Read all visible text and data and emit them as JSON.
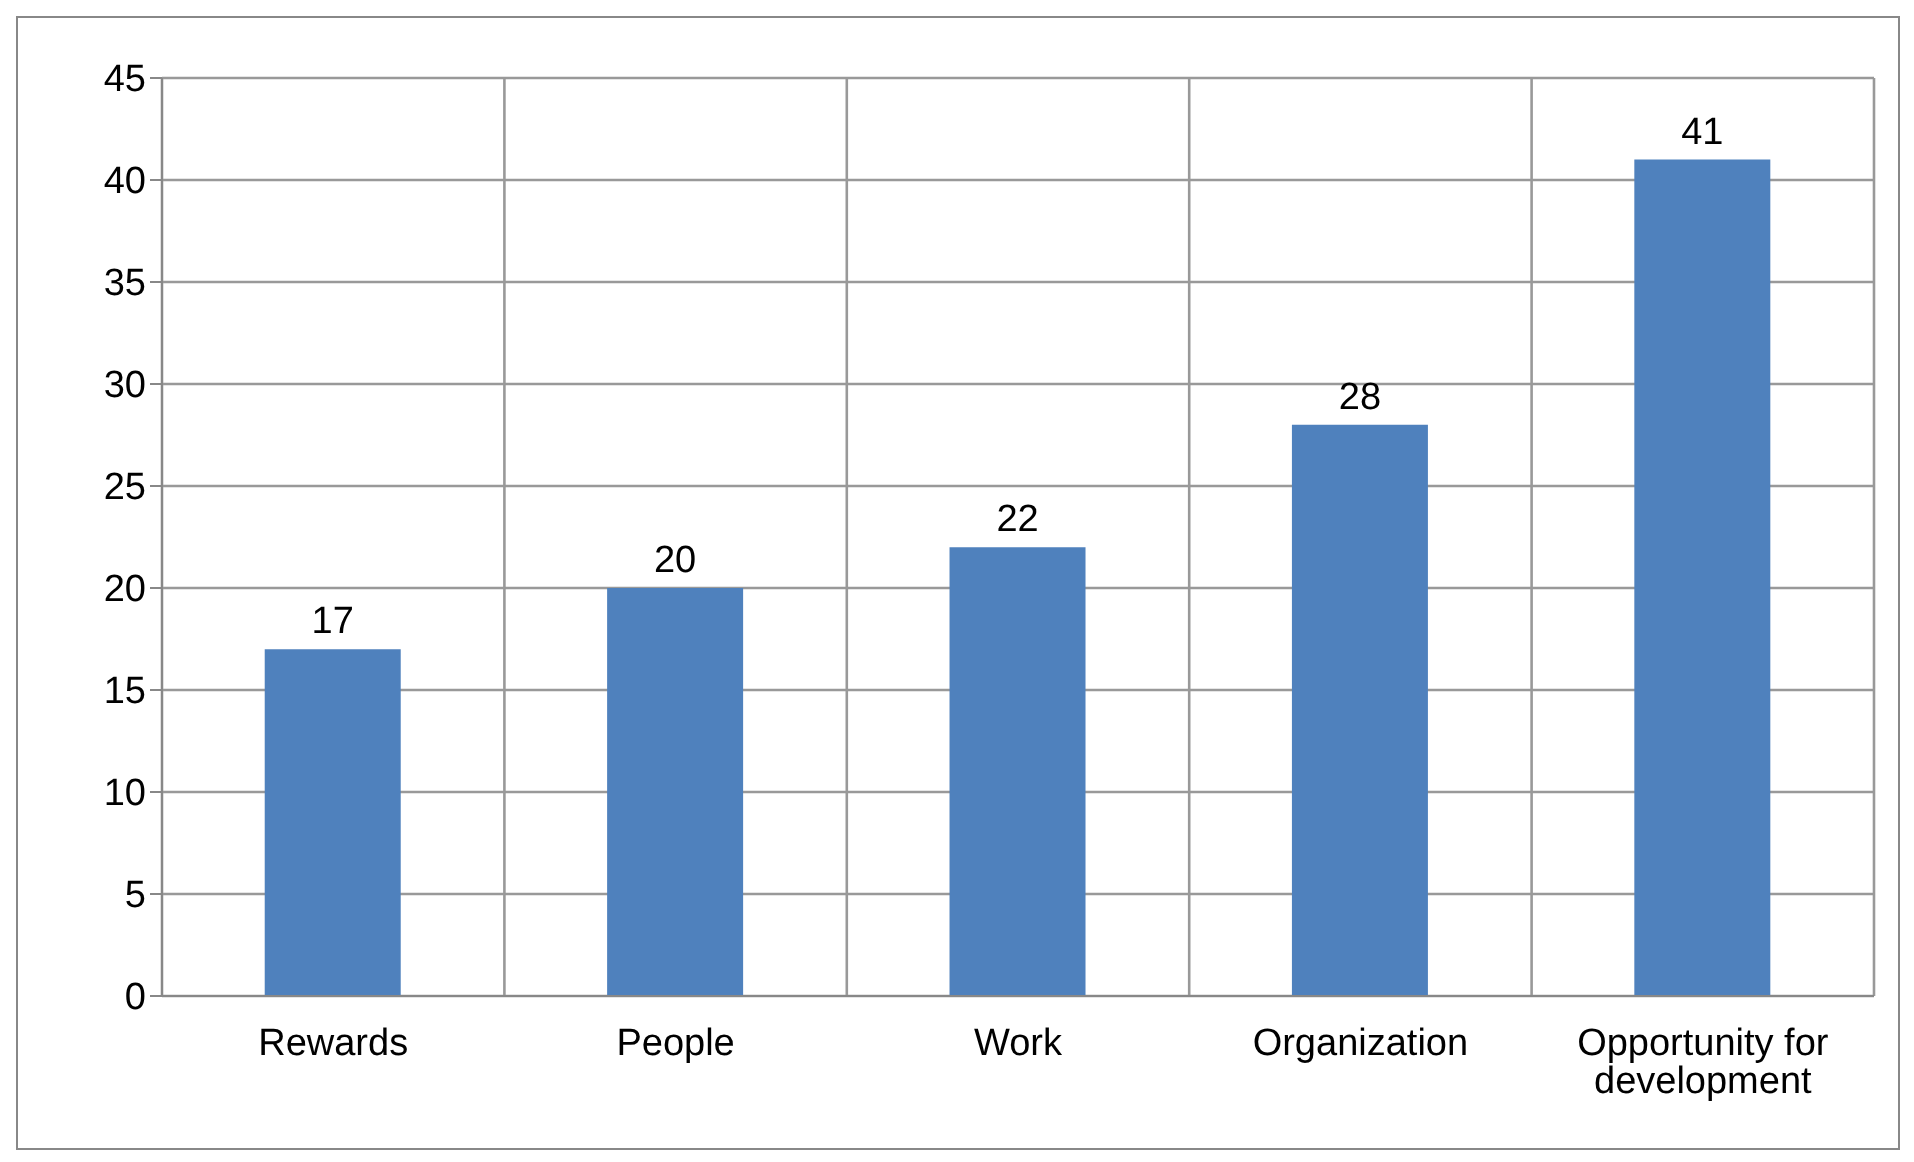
{
  "chart_data": {
    "type": "bar",
    "categories": [
      "Rewards",
      "People",
      "Work",
      "Organization",
      "Opportunity for development"
    ],
    "values": [
      17,
      20,
      22,
      28,
      41
    ],
    "color": "#4f81bd",
    "ylim": [
      0,
      45
    ],
    "yticks": [
      0,
      5,
      10,
      15,
      20,
      25,
      30,
      35,
      40,
      45
    ],
    "grid": true,
    "data_labels": true
  }
}
